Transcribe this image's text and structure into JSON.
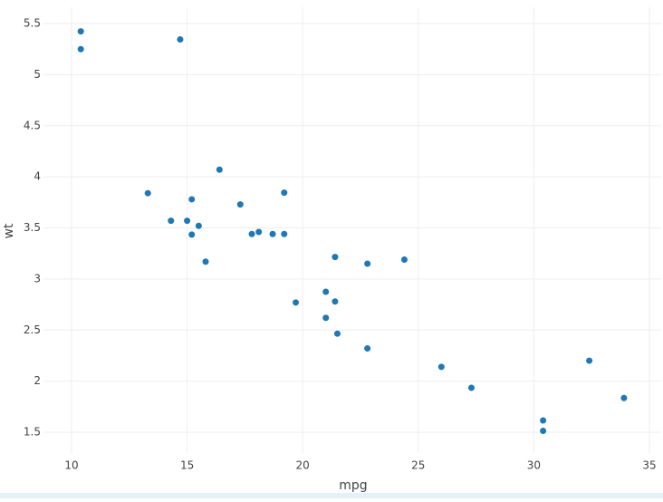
{
  "chart_data": {
    "type": "scatter",
    "x_label": "mpg",
    "y_label": "wt",
    "x": [
      21,
      21,
      22.8,
      21.4,
      18.7,
      18.1,
      14.3,
      24.4,
      22.8,
      19.2,
      17.8,
      16.4,
      17.3,
      15.2,
      10.4,
      10.4,
      14.7,
      32.4,
      30.4,
      33.9,
      21.5,
      15.5,
      15.2,
      13.3,
      19.2,
      27.3,
      26,
      30.4,
      15.8,
      19.7,
      15,
      21.4
    ],
    "values": [
      2.62,
      2.875,
      2.32,
      3.215,
      3.44,
      3.46,
      3.57,
      3.19,
      3.15,
      3.44,
      3.44,
      4.07,
      3.73,
      3.78,
      5.25,
      5.424,
      5.345,
      2.2,
      1.615,
      1.835,
      2.465,
      3.52,
      3.435,
      3.84,
      3.845,
      1.935,
      2.14,
      1.513,
      3.17,
      2.77,
      3.57,
      2.78
    ],
    "color": "#1f77b4",
    "xlim": [
      8.785,
      35.51
    ],
    "ylim": [
      1.296,
      5.66
    ],
    "xticks": [
      10,
      15,
      20,
      25,
      30,
      35
    ],
    "yticks": [
      1.5,
      2,
      2.5,
      3,
      3.5,
      4,
      4.5,
      5,
      5.5
    ],
    "grid": true
  }
}
